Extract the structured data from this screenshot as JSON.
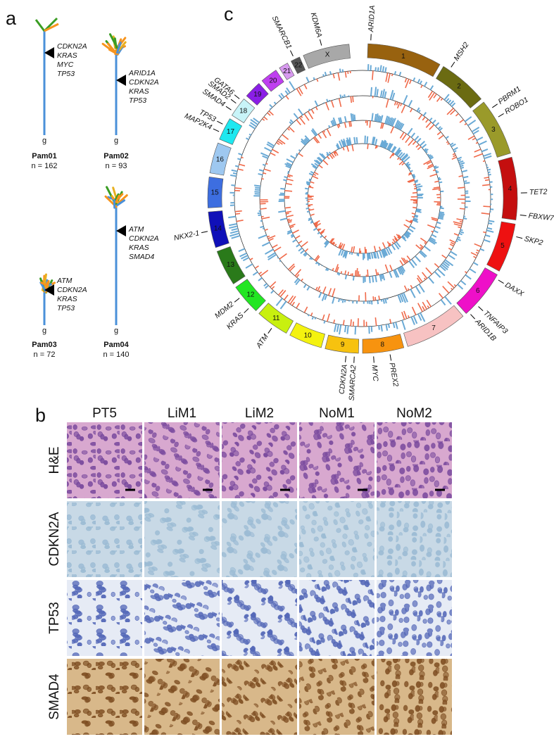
{
  "panel_a": {
    "label": "a",
    "trees": [
      {
        "name": "Pam01",
        "n": "n = 162",
        "genes": [
          "CDKN2A",
          "KRAS",
          "MYC",
          "TP53"
        ],
        "root": "g"
      },
      {
        "name": "Pam02",
        "n": "n = 93",
        "genes": [
          "ARID1A",
          "CDKN2A",
          "KRAS",
          "TP53"
        ],
        "root": "g"
      },
      {
        "name": "Pam03",
        "n": "n =  72",
        "genes": [
          "ATM",
          "CDKN2A",
          "KRAS",
          "TP53"
        ],
        "root": "g"
      },
      {
        "name": "Pam04",
        "n": "n = 140",
        "genes": [
          "ATM",
          "CDKN2A",
          "KRAS",
          "SMAD4"
        ],
        "root": "g"
      }
    ]
  },
  "panel_c": {
    "label": "c",
    "chromosomes": [
      {
        "label": "1",
        "color": "#98620f"
      },
      {
        "label": "2",
        "color": "#6b6b12"
      },
      {
        "label": "3",
        "color": "#9a9a2a"
      },
      {
        "label": "4",
        "color": "#c40f0f"
      },
      {
        "label": "5",
        "color": "#ee1111"
      },
      {
        "label": "6",
        "color": "#ee10c8"
      },
      {
        "label": "7",
        "color": "#f7c2c2"
      },
      {
        "label": "8",
        "color": "#f7930f"
      },
      {
        "label": "9",
        "color": "#f7c20f"
      },
      {
        "label": "10",
        "color": "#f4f20f"
      },
      {
        "label": "11",
        "color": "#c8f00f"
      },
      {
        "label": "12",
        "color": "#22e622"
      },
      {
        "label": "13",
        "color": "#2a7a1a"
      },
      {
        "label": "14",
        "color": "#1010b8"
      },
      {
        "label": "15",
        "color": "#3d6ee0"
      },
      {
        "label": "16",
        "color": "#9ec8f0"
      },
      {
        "label": "17",
        "color": "#1ee8f0"
      },
      {
        "label": "18",
        "color": "#c8f4f8"
      },
      {
        "label": "19",
        "color": "#8a1ee6"
      },
      {
        "label": "20",
        "color": "#bf3ef0"
      },
      {
        "label": "21",
        "color": "#d89af0"
      },
      {
        "label": "22",
        "color": "#555555"
      },
      {
        "label": "X",
        "color": "#a8a8a8"
      }
    ],
    "genes": [
      "ARID1A",
      "MSH2",
      "PBRM1",
      "ROBO1",
      "TET2",
      "FBXW7",
      "SKP2",
      "DAXX",
      "TNFAIP3",
      "ARID1B",
      "PREX2",
      "MYC",
      "SMARCA2",
      "CDKN2A",
      "ATM",
      "KRAS",
      "MDM2",
      "NKX2-1",
      "MAP2K4",
      "TP53",
      "SMAD4",
      "SMAD2",
      "GATA6",
      "SMARCB1",
      "KDM6A"
    ],
    "gain_color": "#6aaad6",
    "loss_color": "#f06a4a"
  },
  "panel_b": {
    "label": "b",
    "columns": [
      "PT5",
      "LiM1",
      "LiM2",
      "NoM1",
      "NoM2"
    ],
    "rows": [
      "H&E",
      "CDKN2A",
      "TP53",
      "SMAD4"
    ]
  }
}
